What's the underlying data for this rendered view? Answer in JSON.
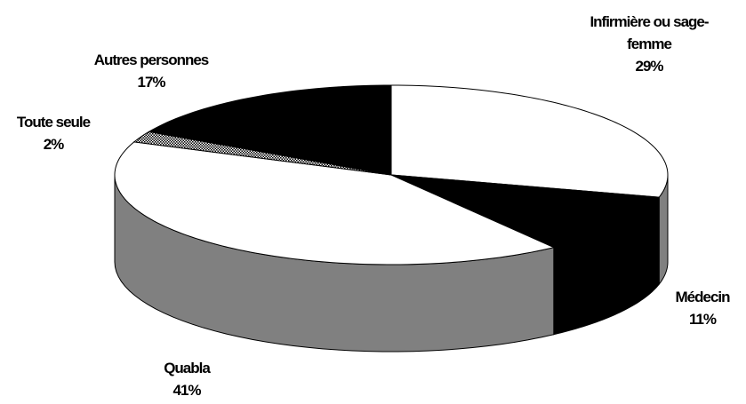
{
  "chart_data": {
    "type": "pie3d",
    "categories": [
      "Infirmière ou sage-femme",
      "Médecin",
      "Quabla",
      "Toute seule",
      "Autres personnes"
    ],
    "values": [
      29,
      11,
      41,
      2,
      17
    ],
    "value_labels": [
      "29%",
      "11%",
      "41%",
      "2%",
      "17%"
    ],
    "colors": [
      "#ffffff",
      "#000000",
      "#ffffff",
      "#b8b8b8",
      "#000000"
    ]
  }
}
